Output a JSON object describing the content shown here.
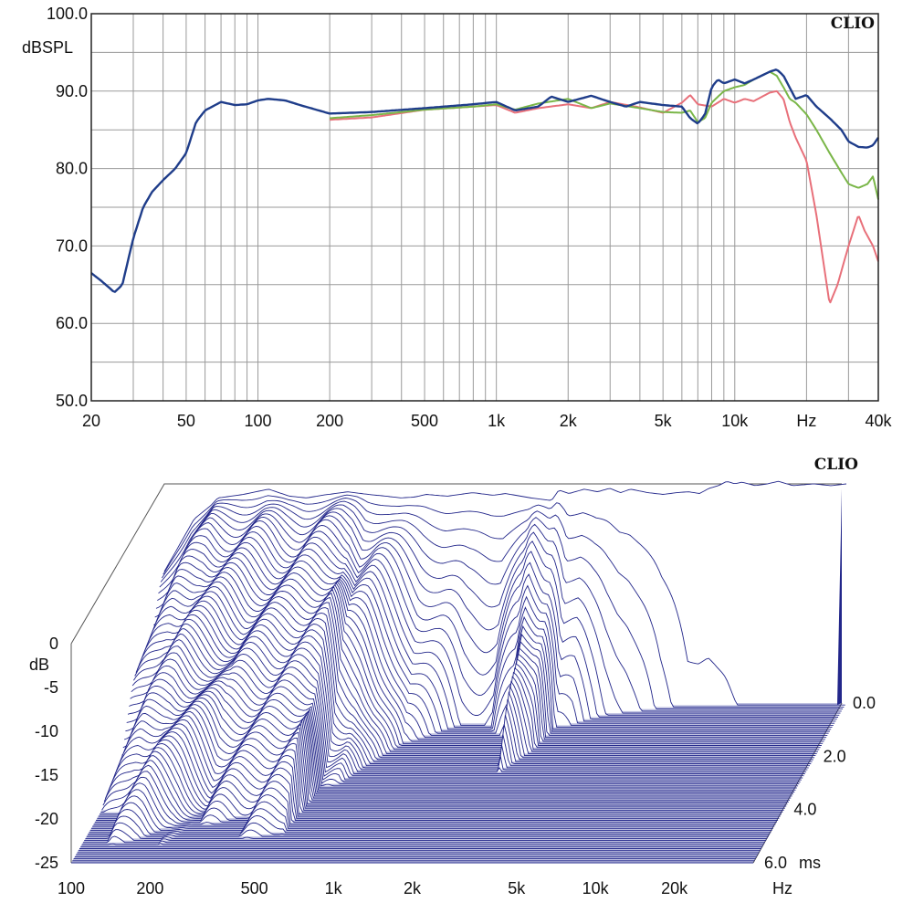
{
  "chart_data": [
    {
      "type": "line",
      "brand": "CLIO",
      "ylabel": "dBSPL",
      "x_scale": "log",
      "xlim": [
        20,
        40000
      ],
      "ylim": [
        50,
        100
      ],
      "x_tick_values": [
        20,
        50,
        100,
        200,
        500,
        1000,
        2000,
        5000,
        10000,
        20000,
        40000
      ],
      "x_tick_labels": [
        "20",
        "50",
        "100",
        "200",
        "500",
        "1k",
        "2k",
        "5k",
        "10k",
        "Hz",
        "40k"
      ],
      "y_tick_values": [
        50,
        60,
        70,
        80,
        90,
        100
      ],
      "y_tick_labels": [
        "50.0",
        "60.0",
        "70.0",
        "80.0",
        "90.0",
        "100.0"
      ],
      "grid": true,
      "series": [
        {
          "color": "#e8707a",
          "x": [
            200,
            300,
            500,
            800,
            1000,
            1200,
            1500,
            2000,
            2500,
            3000,
            4000,
            5000,
            6000,
            6500,
            7000,
            8000,
            9000,
            10000,
            11000,
            12000,
            14000,
            15000,
            16000,
            17000,
            18000,
            20000,
            22000,
            25000,
            27000,
            30000,
            33000,
            35000,
            38000,
            40000
          ],
          "y": [
            86.3,
            86.6,
            87.6,
            88.0,
            88.2,
            87.2,
            87.8,
            88.3,
            87.8,
            88.6,
            87.9,
            87.2,
            88.5,
            89.5,
            88.3,
            88.0,
            89.0,
            88.5,
            89.0,
            88.7,
            89.8,
            90.0,
            89.0,
            86.0,
            84.0,
            81.0,
            74.0,
            62.5,
            65.0,
            70.0,
            74.0,
            72.0,
            70.0,
            68.0
          ]
        },
        {
          "color": "#7ab648",
          "x": [
            200,
            300,
            500,
            800,
            1000,
            1200,
            1500,
            2000,
            2500,
            3000,
            4000,
            5000,
            6000,
            6500,
            7000,
            7500,
            8000,
            9000,
            10000,
            11000,
            12000,
            14000,
            15000,
            16000,
            17000,
            18000,
            20000,
            22000,
            25000,
            28000,
            30000,
            33000,
            36000,
            38000,
            40000
          ],
          "y": [
            86.5,
            86.9,
            87.6,
            88.0,
            88.3,
            87.6,
            88.4,
            89.0,
            87.8,
            88.4,
            87.8,
            87.3,
            87.2,
            87.5,
            86.0,
            86.5,
            88.5,
            90.0,
            90.5,
            90.8,
            91.5,
            92.5,
            92.0,
            90.5,
            89.0,
            88.5,
            87.0,
            85.0,
            82.0,
            79.5,
            78.0,
            77.5,
            78.0,
            79.0,
            76.0
          ]
        },
        {
          "color": "#1f3d8a",
          "x": [
            20,
            22,
            24,
            25,
            27,
            30,
            33,
            36,
            40,
            45,
            50,
            55,
            60,
            70,
            80,
            90,
            100,
            110,
            130,
            150,
            200,
            300,
            500,
            800,
            1000,
            1200,
            1500,
            1700,
            2000,
            2500,
            3000,
            3500,
            4000,
            5000,
            6000,
            6500,
            7000,
            7500,
            8000,
            8500,
            9000,
            10000,
            11000,
            12000,
            14000,
            15000,
            16000,
            18000,
            20000,
            22000,
            25000,
            28000,
            30000,
            33000,
            36000,
            38000,
            40000
          ],
          "y": [
            66.5,
            65.5,
            64.5,
            64.0,
            65.0,
            71.0,
            75.0,
            77.0,
            78.5,
            80.0,
            82.0,
            86.0,
            87.5,
            88.6,
            88.2,
            88.3,
            88.8,
            89.0,
            88.8,
            88.2,
            87.1,
            87.3,
            87.8,
            88.3,
            88.6,
            87.5,
            88.0,
            89.3,
            88.6,
            89.4,
            88.6,
            88.0,
            88.6,
            88.2,
            88.0,
            86.5,
            85.8,
            87.0,
            90.5,
            91.5,
            91.0,
            91.5,
            91.0,
            91.5,
            92.5,
            92.8,
            92.0,
            89.0,
            89.5,
            88.0,
            86.5,
            85.0,
            83.5,
            82.8,
            82.7,
            83.0,
            84.0
          ]
        }
      ]
    },
    {
      "type": "waterfall",
      "brand": "CLIO",
      "zlabel": "dB",
      "x_scale": "log",
      "xlim": [
        100,
        40000
      ],
      "x_tick_values": [
        100,
        200,
        500,
        1000,
        2000,
        5000,
        10000,
        20000
      ],
      "x_tick_labels": [
        "100",
        "200",
        "500",
        "1k",
        "2k",
        "5k",
        "10k",
        "20k",
        "Hz"
      ],
      "z_tick_values": [
        0,
        -5,
        -10,
        -15,
        -20,
        -25
      ],
      "z_tick_labels": [
        "0",
        "-5",
        "-10",
        "-15",
        "-20",
        "-25"
      ],
      "time_tick_values": [
        0,
        2,
        4,
        6
      ],
      "time_tick_labels": [
        "0.0",
        "2.0",
        "4.0",
        "6.0",
        "ms"
      ],
      "zlim": [
        -25,
        0
      ],
      "tlim": [
        0,
        6
      ],
      "slice_count": 80,
      "line_color": "#22268a",
      "floor_color": "#8a8ec8",
      "initial_response": {
        "x": [
          100,
          130,
          150,
          160,
          180,
          200,
          250,
          300,
          350,
          400,
          500,
          600,
          700,
          800,
          900,
          1000,
          1200,
          1500,
          1800,
          2000,
          2500,
          3000,
          3200,
          3500,
          4000,
          4500,
          5000,
          5500,
          6000,
          7000,
          8000,
          9000,
          10000,
          11000,
          12000,
          13000,
          14000,
          15000,
          16000,
          18000,
          20000,
          22000,
          25000,
          30000,
          35000,
          40000
        ],
        "y": [
          -10,
          -4,
          -2.5,
          -1.6,
          -1.4,
          -1.2,
          -0.6,
          -1.4,
          -1.6,
          -1.3,
          -0.9,
          -1.2,
          -1.4,
          -1.6,
          -1.5,
          -1.2,
          -1.4,
          -1.0,
          -1.3,
          -1.1,
          -1.6,
          -1.9,
          -0.7,
          -1.1,
          -0.6,
          -0.9,
          -0.5,
          -1.0,
          -0.6,
          -1.0,
          -1.2,
          -1.0,
          -0.9,
          -1.1,
          -0.5,
          -0.2,
          0.3,
          0.0,
          0.2,
          -0.2,
          0.0,
          0.3,
          -0.2,
          0.0,
          -0.2,
          0.0
        ]
      },
      "decay_ms": {
        "x": [
          100,
          150,
          200,
          250,
          300,
          400,
          500,
          550,
          600,
          700,
          800,
          1000,
          1500,
          2000,
          2500,
          2700,
          3000,
          3200,
          3500,
          4000,
          5000,
          6000,
          7000,
          8000,
          10000,
          12000,
          20000,
          40000
        ],
        "y": [
          6.0,
          6.0,
          5.3,
          4.3,
          4.7,
          5.0,
          5.4,
          5.6,
          3.2,
          3.0,
          2.4,
          1.5,
          0.9,
          0.9,
          1.6,
          2.8,
          2.2,
          1.8,
          0.9,
          0.8,
          0.5,
          0.4,
          0.3,
          0.2,
          0.1,
          0.1,
          0.05,
          0.05
        ]
      }
    }
  ]
}
